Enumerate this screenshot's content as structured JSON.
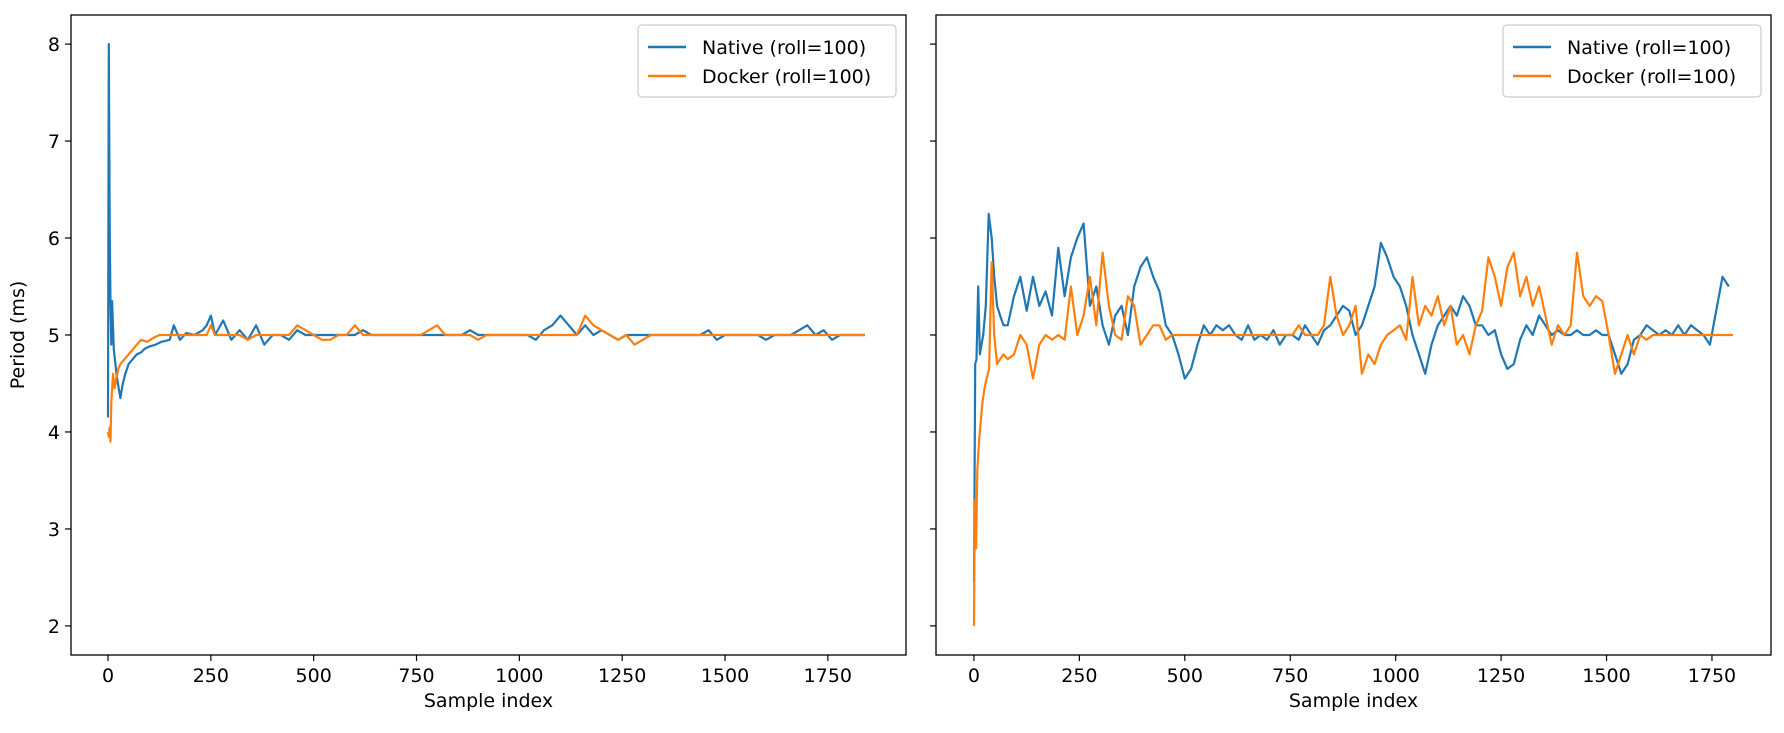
{
  "figure": {
    "colors": {
      "native": "#1f77b4",
      "docker": "#ff7f0e",
      "axes": "#000000",
      "legend_frame": "#cccccc"
    }
  },
  "chart_data": [
    {
      "type": "line",
      "xlabel": "Sample index",
      "ylabel": "Period (ms)",
      "xlim": [
        -90,
        1940
      ],
      "ylim": [
        1.7,
        8.3
      ],
      "x_ticks": [
        0,
        250,
        500,
        750,
        1000,
        1250,
        1500,
        1750
      ],
      "y_ticks": [
        2,
        3,
        4,
        5,
        6,
        7,
        8
      ],
      "grid": false,
      "legend": "top-right",
      "series": [
        {
          "name": "Native (roll=100)",
          "color": "#1f77b4",
          "x": [
            0,
            2,
            4,
            6,
            8,
            10,
            14,
            18,
            22,
            26,
            30,
            36,
            42,
            50,
            60,
            70,
            80,
            90,
            100,
            115,
            130,
            150,
            160,
            175,
            190,
            210,
            230,
            240,
            250,
            260,
            280,
            300,
            320,
            340,
            360,
            380,
            400,
            420,
            440,
            460,
            480,
            500,
            520,
            540,
            560,
            580,
            600,
            620,
            640,
            660,
            680,
            700,
            720,
            740,
            760,
            780,
            800,
            820,
            840,
            860,
            880,
            900,
            920,
            940,
            960,
            980,
            1000,
            1020,
            1040,
            1060,
            1080,
            1100,
            1120,
            1140,
            1160,
            1180,
            1200,
            1220,
            1240,
            1260,
            1280,
            1300,
            1320,
            1340,
            1360,
            1380,
            1400,
            1420,
            1440,
            1460,
            1480,
            1500,
            1520,
            1540,
            1560,
            1580,
            1600,
            1620,
            1640,
            1660,
            1680,
            1700,
            1720,
            1740,
            1760,
            1780,
            1800,
            1820,
            1840
          ],
          "y": [
            4.15,
            8.0,
            6.1,
            5.3,
            4.9,
            5.35,
            4.85,
            4.7,
            4.55,
            4.45,
            4.35,
            4.5,
            4.6,
            4.7,
            4.75,
            4.8,
            4.82,
            4.86,
            4.88,
            4.9,
            4.93,
            4.95,
            5.1,
            4.95,
            5.02,
            5.0,
            5.05,
            5.1,
            5.2,
            5.0,
            5.15,
            4.95,
            5.05,
            4.95,
            5.1,
            4.9,
            5.0,
            5.0,
            4.95,
            5.05,
            5.0,
            5.0,
            5.0,
            5.0,
            5.0,
            5.0,
            5.0,
            5.05,
            5.0,
            5.0,
            5.0,
            5.0,
            5.0,
            5.0,
            5.0,
            5.0,
            5.0,
            5.0,
            5.0,
            5.0,
            5.05,
            5.0,
            5.0,
            5.0,
            5.0,
            5.0,
            5.0,
            5.0,
            4.95,
            5.05,
            5.1,
            5.2,
            5.1,
            5.0,
            5.1,
            5.0,
            5.05,
            5.0,
            4.95,
            5.0,
            5.0,
            5.0,
            5.0,
            5.0,
            5.0,
            5.0,
            5.0,
            5.0,
            5.0,
            5.05,
            4.95,
            5.0,
            5.0,
            5.0,
            5.0,
            5.0,
            4.95,
            5.0,
            5.0,
            5.0,
            5.05,
            5.1,
            5.0,
            5.05,
            4.95,
            5.0,
            5.0,
            5.0,
            5.0
          ]
        },
        {
          "name": "Docker (roll=100)",
          "color": "#ff7f0e",
          "x": [
            0,
            2,
            4,
            6,
            8,
            12,
            16,
            20,
            25,
            30,
            40,
            50,
            60,
            70,
            80,
            95,
            110,
            125,
            140,
            160,
            180,
            200,
            220,
            240,
            250,
            260,
            280,
            300,
            320,
            340,
            360,
            380,
            400,
            420,
            440,
            460,
            480,
            500,
            520,
            540,
            560,
            580,
            600,
            620,
            640,
            660,
            680,
            700,
            720,
            740,
            760,
            780,
            800,
            820,
            840,
            860,
            880,
            900,
            920,
            940,
            960,
            980,
            1000,
            1020,
            1040,
            1060,
            1080,
            1100,
            1120,
            1140,
            1160,
            1180,
            1200,
            1220,
            1240,
            1260,
            1280,
            1300,
            1320,
            1340,
            1360,
            1380,
            1400,
            1420,
            1440,
            1460,
            1480,
            1500,
            1520,
            1540,
            1560,
            1580,
            1600,
            1620,
            1640,
            1660,
            1680,
            1700,
            1720,
            1740,
            1760,
            1780,
            1800,
            1820,
            1840
          ],
          "y": [
            4.0,
            3.95,
            4.05,
            3.9,
            4.3,
            4.6,
            4.45,
            4.55,
            4.65,
            4.7,
            4.75,
            4.8,
            4.85,
            4.9,
            4.95,
            4.93,
            4.97,
            5.0,
            5.0,
            5.0,
            5.0,
            5.0,
            5.0,
            5.0,
            5.1,
            5.0,
            5.0,
            5.0,
            5.0,
            4.95,
            5.0,
            5.0,
            5.0,
            5.0,
            5.0,
            5.1,
            5.05,
            5.0,
            4.95,
            4.95,
            5.0,
            5.0,
            5.1,
            5.0,
            5.0,
            5.0,
            5.0,
            5.0,
            5.0,
            5.0,
            5.0,
            5.05,
            5.1,
            5.0,
            5.0,
            5.0,
            5.0,
            4.95,
            5.0,
            5.0,
            5.0,
            5.0,
            5.0,
            5.0,
            5.0,
            5.0,
            5.0,
            5.0,
            5.0,
            5.0,
            5.2,
            5.1,
            5.05,
            5.0,
            4.95,
            5.0,
            4.9,
            4.95,
            5.0,
            5.0,
            5.0,
            5.0,
            5.0,
            5.0,
            5.0,
            5.0,
            5.0,
            5.0,
            5.0,
            5.0,
            5.0,
            5.0,
            5.0,
            5.0,
            5.0,
            5.0,
            5.0,
            5.0,
            5.0,
            5.0,
            5.0,
            5.0,
            5.0,
            5.0,
            5.0
          ]
        }
      ]
    },
    {
      "type": "line",
      "xlabel": "Sample index",
      "ylabel": "",
      "xlim": [
        -90,
        1890
      ],
      "ylim": [
        1.7,
        8.3
      ],
      "x_ticks": [
        0,
        250,
        500,
        750,
        1000,
        1250,
        1500,
        1750
      ],
      "y_ticks": [
        2,
        3,
        4,
        5,
        6,
        7,
        8
      ],
      "grid": false,
      "legend": "top-right",
      "series": [
        {
          "name": "Native (roll=100)",
          "color": "#1f77b4",
          "x": [
            0,
            3,
            6,
            10,
            14,
            18,
            22,
            28,
            35,
            42,
            48,
            55,
            62,
            70,
            80,
            95,
            110,
            125,
            140,
            155,
            170,
            185,
            200,
            215,
            230,
            245,
            260,
            275,
            290,
            305,
            320,
            335,
            350,
            365,
            380,
            395,
            410,
            425,
            440,
            455,
            470,
            485,
            500,
            515,
            530,
            545,
            560,
            575,
            590,
            605,
            620,
            635,
            650,
            665,
            680,
            695,
            710,
            725,
            740,
            755,
            770,
            785,
            800,
            815,
            830,
            845,
            860,
            875,
            890,
            905,
            920,
            935,
            950,
            965,
            980,
            995,
            1010,
            1025,
            1040,
            1055,
            1070,
            1085,
            1100,
            1115,
            1130,
            1145,
            1160,
            1175,
            1190,
            1205,
            1220,
            1235,
            1250,
            1265,
            1280,
            1295,
            1310,
            1325,
            1340,
            1355,
            1370,
            1385,
            1400,
            1415,
            1430,
            1445,
            1460,
            1475,
            1490,
            1505,
            1520,
            1535,
            1550,
            1565,
            1580,
            1595,
            1610,
            1625,
            1640,
            1655,
            1670,
            1685,
            1700,
            1715,
            1730,
            1745,
            1760,
            1775,
            1790
          ],
          "y": [
            2.45,
            4.7,
            4.75,
            5.5,
            4.8,
            4.9,
            5.0,
            5.3,
            6.25,
            6.0,
            5.6,
            5.3,
            5.2,
            5.1,
            5.1,
            5.4,
            5.6,
            5.25,
            5.6,
            5.3,
            5.45,
            5.2,
            5.9,
            5.4,
            5.8,
            6.0,
            6.15,
            5.3,
            5.5,
            5.1,
            4.9,
            5.2,
            5.3,
            5.0,
            5.5,
            5.7,
            5.8,
            5.6,
            5.45,
            5.1,
            5.0,
            4.8,
            4.55,
            4.65,
            4.9,
            5.1,
            5.0,
            5.1,
            5.05,
            5.1,
            5.0,
            4.95,
            5.1,
            4.95,
            5.0,
            4.95,
            5.05,
            4.9,
            5.0,
            5.0,
            4.95,
            5.1,
            5.0,
            4.9,
            5.05,
            5.1,
            5.2,
            5.3,
            5.25,
            5.0,
            5.1,
            5.3,
            5.5,
            5.95,
            5.8,
            5.6,
            5.5,
            5.3,
            5.0,
            4.8,
            4.6,
            4.9,
            5.1,
            5.2,
            5.3,
            5.2,
            5.4,
            5.3,
            5.1,
            5.1,
            5.0,
            5.05,
            4.8,
            4.65,
            4.7,
            4.95,
            5.1,
            5.0,
            5.2,
            5.1,
            5.0,
            5.05,
            5.0,
            5.0,
            5.05,
            5.0,
            5.0,
            5.05,
            5.0,
            5.0,
            4.8,
            4.6,
            4.7,
            4.95,
            5.0,
            5.1,
            5.05,
            5.0,
            5.05,
            5.0,
            5.1,
            5.0,
            5.1,
            5.05,
            5.0,
            4.9,
            5.25,
            5.6,
            5.5
          ],
          "display_comment": null
        },
        {
          "name": "Docker (roll=100)",
          "color": "#ff7f0e",
          "x": [
            0,
            2,
            5,
            8,
            12,
            16,
            20,
            25,
            30,
            36,
            42,
            48,
            55,
            62,
            70,
            80,
            95,
            110,
            125,
            140,
            155,
            170,
            185,
            200,
            215,
            230,
            245,
            260,
            275,
            290,
            305,
            320,
            335,
            350,
            365,
            380,
            395,
            410,
            425,
            440,
            455,
            470,
            485,
            500,
            515,
            530,
            545,
            560,
            575,
            590,
            605,
            620,
            635,
            650,
            665,
            680,
            695,
            710,
            725,
            740,
            755,
            770,
            785,
            800,
            815,
            830,
            845,
            860,
            875,
            890,
            905,
            920,
            935,
            950,
            965,
            980,
            995,
            1010,
            1025,
            1040,
            1055,
            1070,
            1085,
            1100,
            1115,
            1130,
            1145,
            1160,
            1175,
            1190,
            1205,
            1220,
            1235,
            1250,
            1265,
            1280,
            1295,
            1310,
            1325,
            1340,
            1355,
            1370,
            1385,
            1400,
            1415,
            1430,
            1445,
            1460,
            1475,
            1490,
            1505,
            1520,
            1535,
            1550,
            1565,
            1580,
            1595,
            1610,
            1625,
            1640,
            1655,
            1670,
            1685,
            1700,
            1715,
            1730,
            1745,
            1760,
            1775,
            1800
          ],
          "y": [
            2.0,
            3.3,
            2.8,
            3.6,
            3.9,
            4.1,
            4.3,
            4.45,
            4.55,
            4.65,
            5.75,
            5.0,
            4.7,
            4.75,
            4.8,
            4.75,
            4.8,
            5.0,
            4.9,
            4.55,
            4.9,
            5.0,
            4.95,
            5.0,
            4.95,
            5.5,
            5.0,
            5.2,
            5.6,
            5.1,
            5.85,
            5.3,
            5.0,
            4.95,
            5.4,
            5.3,
            4.9,
            5.0,
            5.1,
            5.1,
            4.95,
            5.0,
            5.0,
            5.0,
            5.0,
            5.0,
            5.0,
            5.0,
            5.0,
            5.0,
            5.0,
            5.0,
            5.0,
            5.0,
            5.0,
            5.0,
            5.0,
            5.0,
            5.0,
            5.0,
            5.0,
            5.1,
            5.0,
            5.0,
            5.0,
            5.1,
            5.6,
            5.2,
            5.0,
            5.1,
            5.3,
            4.6,
            4.8,
            4.7,
            4.9,
            5.0,
            5.05,
            5.1,
            4.95,
            5.6,
            5.1,
            5.3,
            5.2,
            5.4,
            5.1,
            5.3,
            4.9,
            5.0,
            4.8,
            5.1,
            5.25,
            5.8,
            5.6,
            5.3,
            5.7,
            5.85,
            5.4,
            5.6,
            5.3,
            5.5,
            5.2,
            4.9,
            5.1,
            5.0,
            5.1,
            5.85,
            5.4,
            5.3,
            5.4,
            5.35,
            5.0,
            4.6,
            4.8,
            5.0,
            4.8,
            5.0,
            4.95,
            5.0,
            5.0,
            5.0,
            5.0,
            5.0,
            5.0,
            5.0,
            5.0,
            5.0,
            5.0,
            5.0,
            5.0,
            5.0
          ]
        }
      ]
    }
  ]
}
